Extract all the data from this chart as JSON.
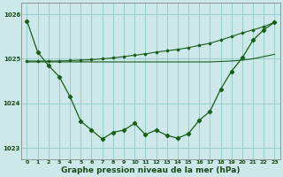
{
  "x": [
    0,
    1,
    2,
    3,
    4,
    5,
    6,
    7,
    8,
    9,
    10,
    11,
    12,
    13,
    14,
    15,
    16,
    17,
    18,
    19,
    20,
    21,
    22,
    23
  ],
  "main_line": [
    1025.85,
    1025.15,
    1024.85,
    1024.6,
    1024.15,
    1023.6,
    1023.4,
    1023.2,
    1023.35,
    1023.4,
    1023.55,
    1023.3,
    1023.4,
    1023.28,
    1023.22,
    1023.32,
    1023.62,
    1023.82,
    1024.32,
    1024.72,
    1025.02,
    1025.42,
    1025.65,
    1025.82
  ],
  "upper_line": [
    1024.95,
    1024.95,
    1024.95,
    1024.95,
    1024.96,
    1024.97,
    1024.98,
    1025.0,
    1025.02,
    1025.05,
    1025.08,
    1025.11,
    1025.15,
    1025.18,
    1025.21,
    1025.25,
    1025.3,
    1025.35,
    1025.42,
    1025.5,
    1025.58,
    1025.65,
    1025.72,
    1025.82
  ],
  "lower_line": [
    1024.93,
    1024.93,
    1024.93,
    1024.93,
    1024.93,
    1024.93,
    1024.93,
    1024.93,
    1024.93,
    1024.93,
    1024.93,
    1024.93,
    1024.93,
    1024.93,
    1024.93,
    1024.93,
    1024.93,
    1024.93,
    1024.94,
    1024.95,
    1024.97,
    1025.0,
    1025.05,
    1025.1
  ],
  "bg_color": "#cce8e8",
  "grid_color": "#99cccc",
  "line_color": "#1a5c1a",
  "xlabel": "Graphe pression niveau de la mer (hPa)",
  "ylim": [
    1022.75,
    1026.25
  ],
  "xlim": [
    -0.5,
    23.5
  ],
  "yticks": [
    1023,
    1024,
    1025,
    1026
  ],
  "xticks": [
    0,
    1,
    2,
    3,
    4,
    5,
    6,
    7,
    8,
    9,
    10,
    11,
    12,
    13,
    14,
    15,
    16,
    17,
    18,
    19,
    20,
    21,
    22,
    23
  ],
  "ylabel_fontsize": 5.5,
  "xlabel_fontsize": 6.5
}
